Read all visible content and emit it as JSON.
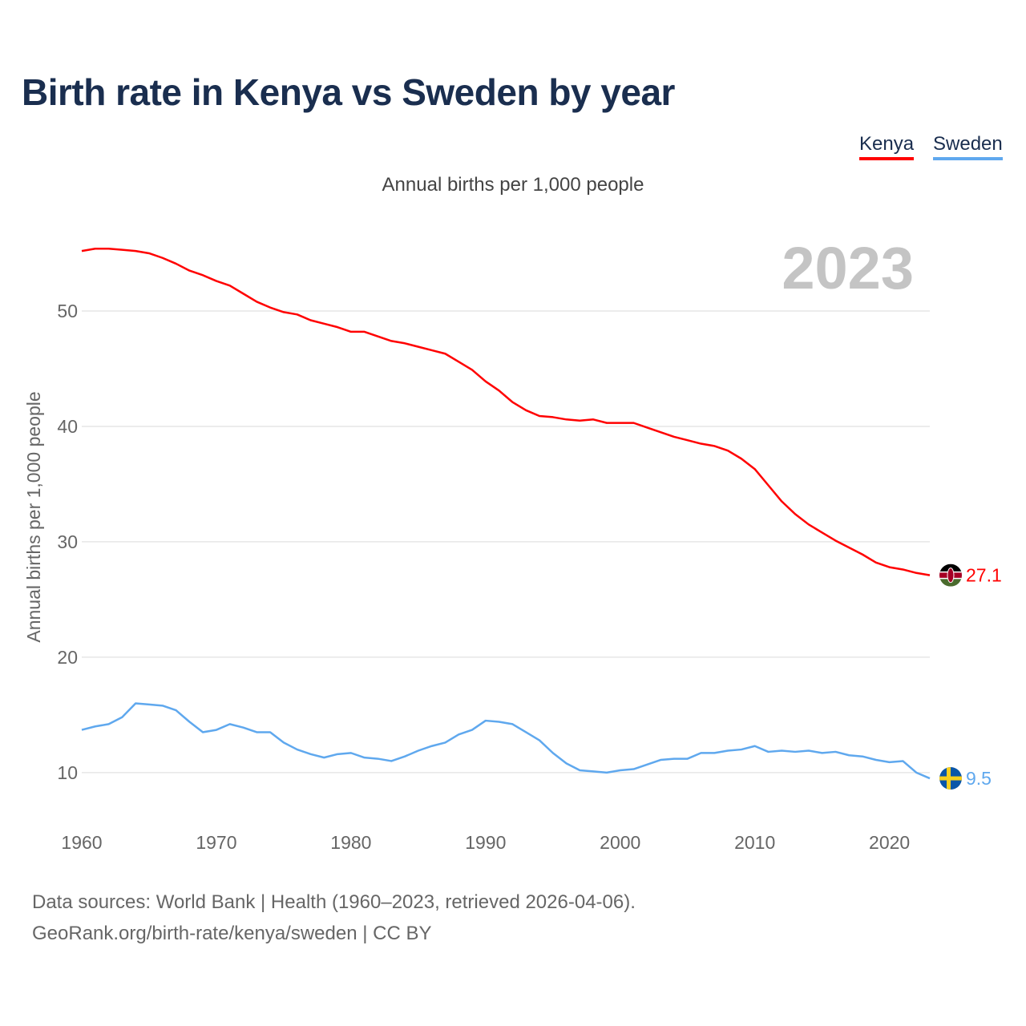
{
  "title": "Birth rate in Kenya vs Sweden by year",
  "subtitle": "Annual births per 1,000 people",
  "footer": {
    "line1": "Data sources: World Bank | Health (1960–2023, retrieved 2026-04-06).",
    "line2": "GeoRank.org/birth-rate/kenya/sweden | CC BY"
  },
  "chart_data": {
    "type": "line",
    "title": "Birth rate in Kenya vs Sweden by year",
    "xlabel": "",
    "ylabel": "Annual births per 1,000 people",
    "year_label": "2023",
    "xlim": [
      1960,
      2023
    ],
    "ylim": [
      6.1,
      57.5
    ],
    "x_ticks": [
      1960,
      1970,
      1980,
      1990,
      2000,
      2010,
      2020
    ],
    "y_ticks": [
      10,
      20,
      30,
      40,
      50
    ],
    "grid": true,
    "legend_position": "top-right",
    "x": [
      1960,
      1961,
      1962,
      1963,
      1964,
      1965,
      1966,
      1967,
      1968,
      1969,
      1970,
      1971,
      1972,
      1973,
      1974,
      1975,
      1976,
      1977,
      1978,
      1979,
      1980,
      1981,
      1982,
      1983,
      1984,
      1985,
      1986,
      1987,
      1988,
      1989,
      1990,
      1991,
      1992,
      1993,
      1994,
      1995,
      1996,
      1997,
      1998,
      1999,
      2000,
      2001,
      2002,
      2003,
      2004,
      2005,
      2006,
      2007,
      2008,
      2009,
      2010,
      2011,
      2012,
      2013,
      2014,
      2015,
      2016,
      2017,
      2018,
      2019,
      2020,
      2021,
      2022,
      2023
    ],
    "series": [
      {
        "name": "Kenya",
        "color": "#ff0000",
        "end_label": "27.1",
        "values": [
          55.2,
          55.4,
          55.4,
          55.3,
          55.2,
          55.0,
          54.6,
          54.1,
          53.5,
          53.1,
          52.6,
          52.2,
          51.5,
          50.8,
          50.3,
          49.9,
          49.7,
          49.2,
          48.9,
          48.6,
          48.2,
          48.2,
          47.8,
          47.4,
          47.2,
          46.9,
          46.6,
          46.3,
          45.6,
          44.9,
          43.9,
          43.1,
          42.1,
          41.4,
          40.9,
          40.8,
          40.6,
          40.5,
          40.6,
          40.3,
          40.3,
          40.3,
          39.9,
          39.5,
          39.1,
          38.8,
          38.5,
          38.3,
          37.9,
          37.2,
          36.3,
          34.9,
          33.5,
          32.4,
          31.5,
          30.8,
          30.1,
          29.5,
          28.9,
          28.2,
          27.8,
          27.6,
          27.3,
          27.1
        ]
      },
      {
        "name": "Sweden",
        "color": "#5fa8ee",
        "end_label": "9.5",
        "values": [
          13.7,
          14.0,
          14.2,
          14.8,
          16.0,
          15.9,
          15.8,
          15.4,
          14.4,
          13.5,
          13.7,
          14.2,
          13.9,
          13.5,
          13.5,
          12.6,
          12.0,
          11.6,
          11.3,
          11.6,
          11.7,
          11.3,
          11.2,
          11.0,
          11.4,
          11.9,
          12.3,
          12.6,
          13.3,
          13.7,
          14.5,
          14.4,
          14.2,
          13.5,
          12.8,
          11.7,
          10.8,
          10.2,
          10.1,
          10.0,
          10.2,
          10.3,
          10.7,
          11.1,
          11.2,
          11.2,
          11.7,
          11.7,
          11.9,
          12.0,
          12.3,
          11.8,
          11.9,
          11.8,
          11.9,
          11.7,
          11.8,
          11.5,
          11.4,
          11.1,
          10.9,
          11.0,
          10.0,
          9.5
        ]
      }
    ]
  }
}
